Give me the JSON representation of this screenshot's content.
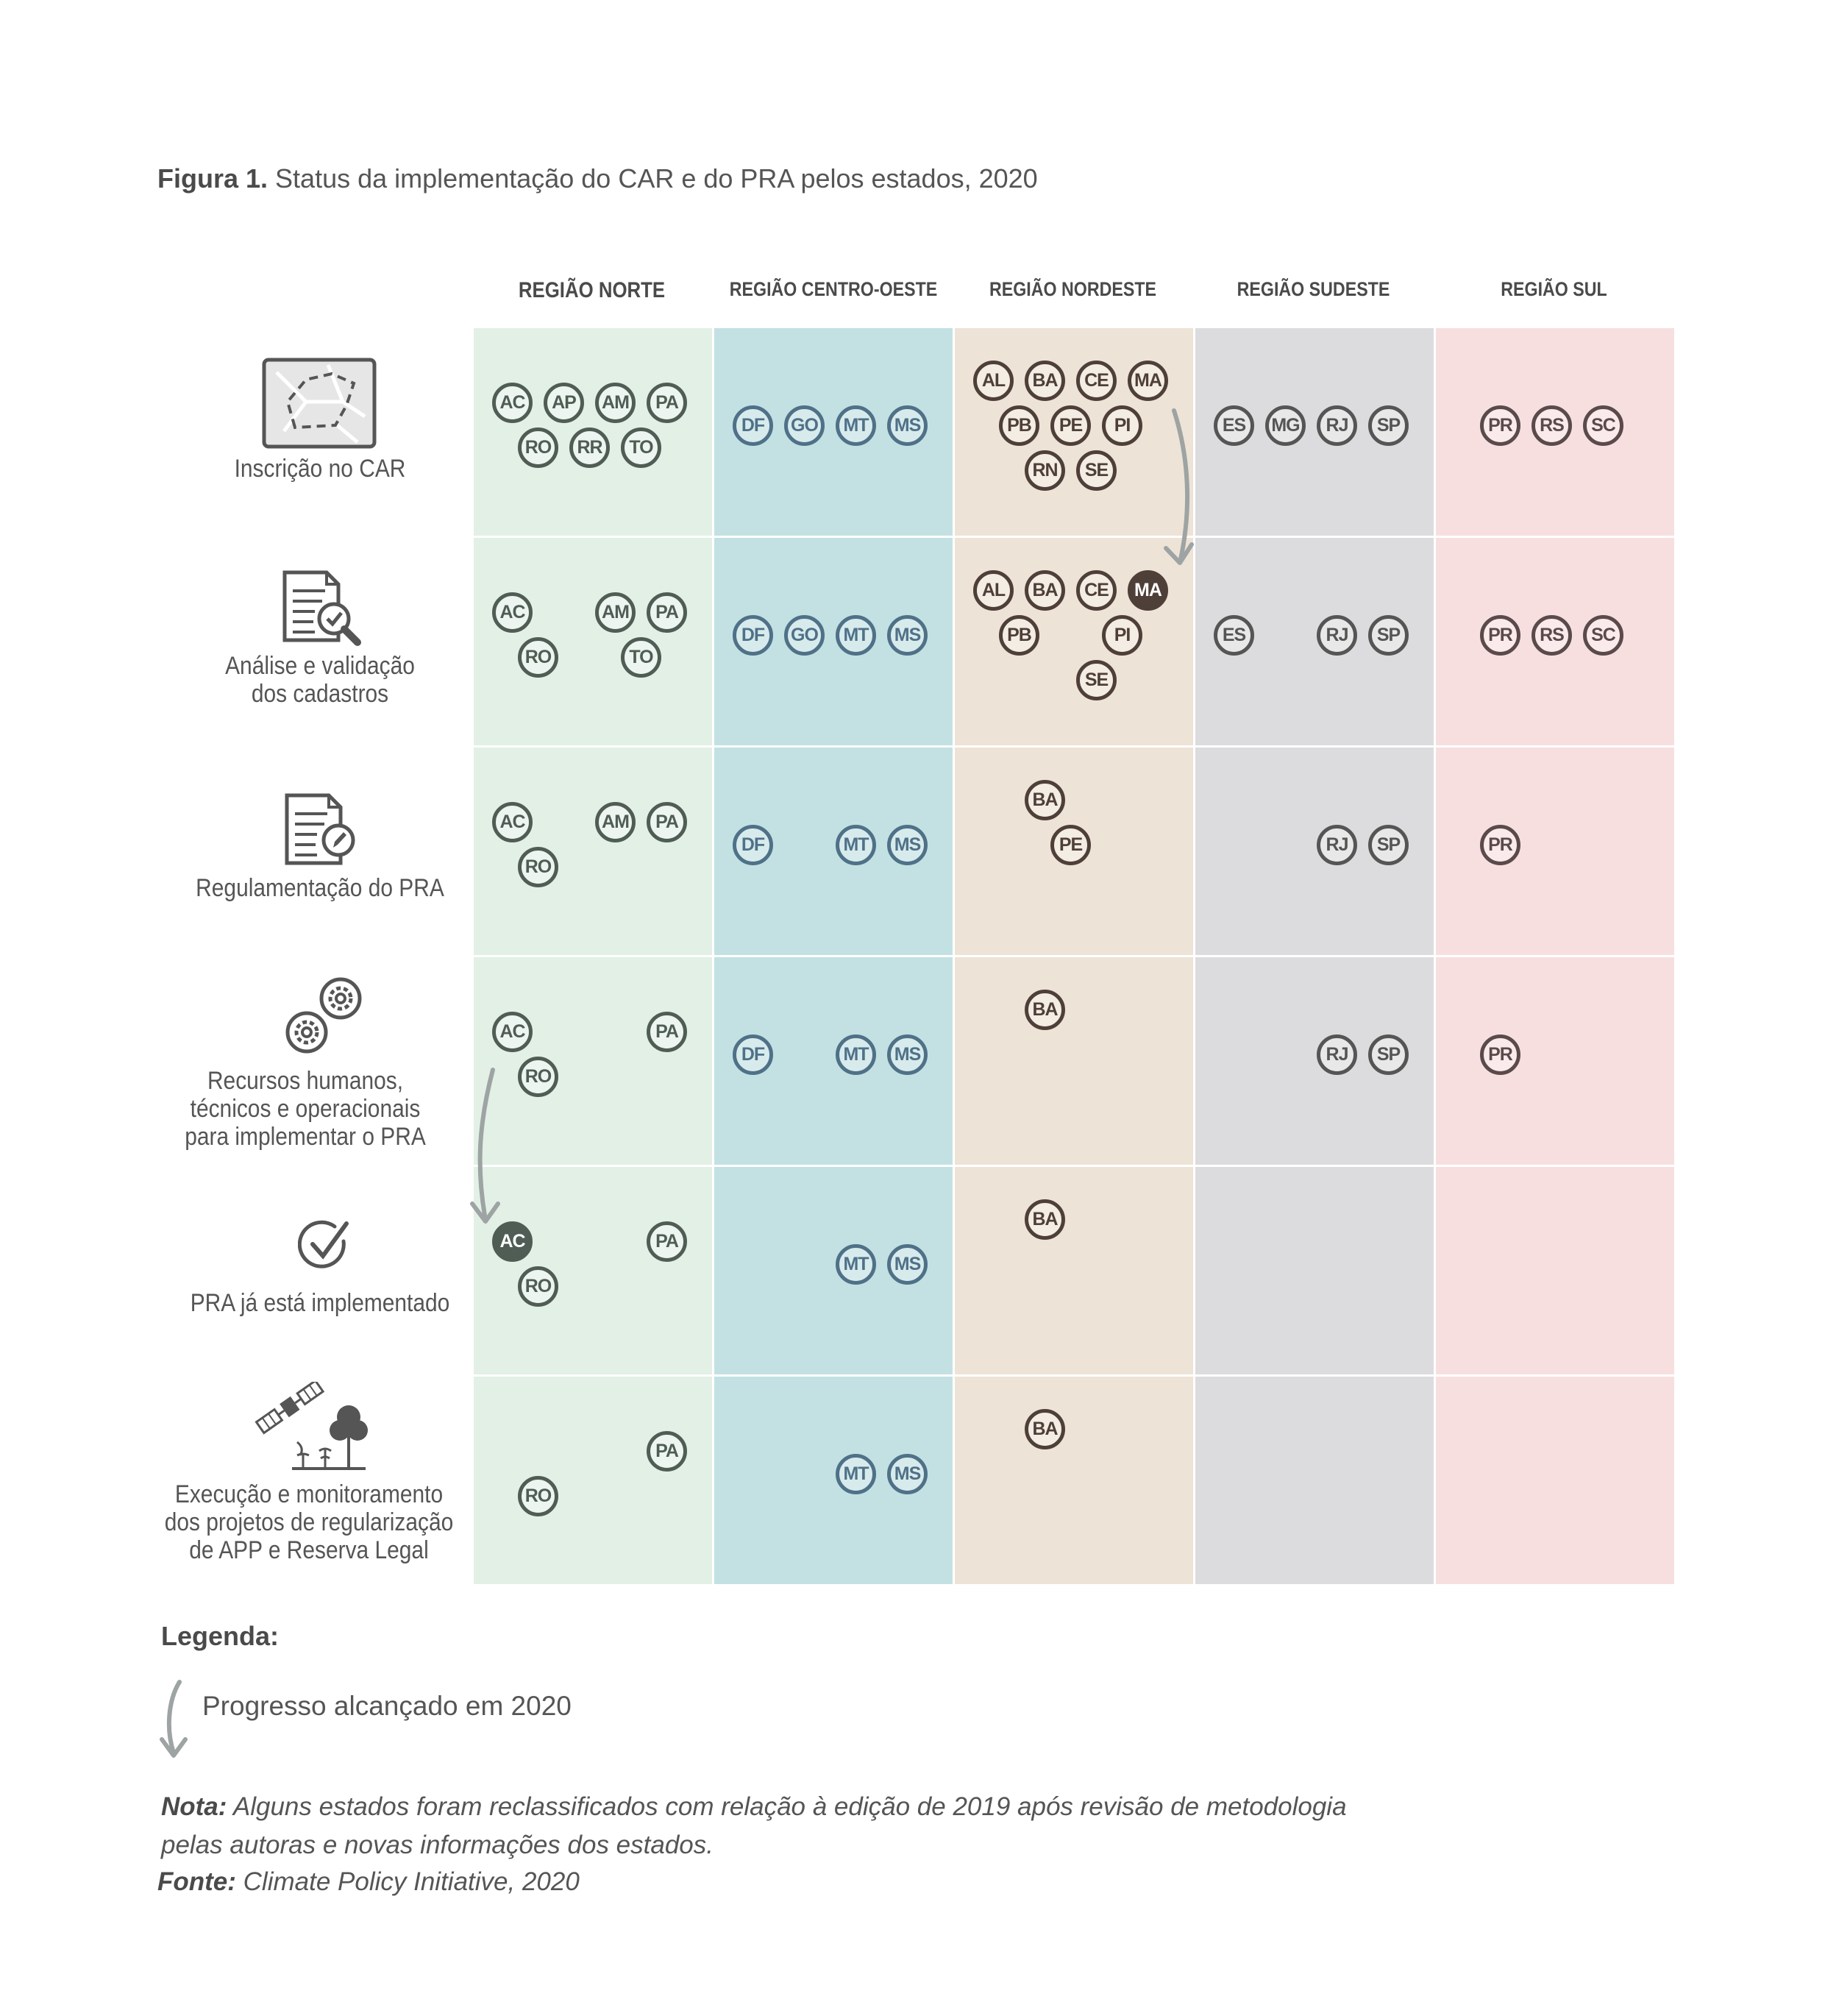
{
  "figure": {
    "title_bold": "Figura 1.",
    "title_text": "Status da implementação do CAR e do PRA pelos estados, 2020"
  },
  "regions": [
    {
      "label": "REGIÃO NORTE",
      "bg": "#e2f0e6",
      "border": "#4f5d55",
      "text": "#4f5d55",
      "fill_text": "#ffffff"
    },
    {
      "label": "REGIÃO CENTRO-OESTE",
      "bg": "#c3e1e2",
      "border": "#4f7188",
      "text": "#4f7188",
      "fill_text": "#ffffff"
    },
    {
      "label": "REGIÃO NORDESTE",
      "bg": "#ede3d6",
      "border": "#4f3f39",
      "text": "#4f3f39",
      "fill_text": "#ffffff"
    },
    {
      "label": "REGIÃO SUDESTE",
      "bg": "#dcdcde",
      "border": "#555555",
      "text": "#555555",
      "fill_text": "#ffffff"
    },
    {
      "label": "REGIÃO SUL",
      "bg": "#f7dfe0",
      "border": "#5a4a4a",
      "text": "#5a4a4a",
      "fill_text": "#ffffff"
    }
  ],
  "stages": [
    {
      "label": "Inscrição no CAR",
      "icon": "map-icon"
    },
    {
      "label": "Análise e validação\ndos cadastros",
      "icon": "document-check-icon"
    },
    {
      "label": "Regulamentação do PRA",
      "icon": "document-edit-icon"
    },
    {
      "label": "Recursos humanos,\ntécnicos e operacionais\npara implementar o PRA",
      "icon": "gears-icon"
    },
    {
      "label": "PRA já está implementado",
      "icon": "checkmark-icon"
    },
    {
      "label": "Execução e monitoramento\ndos projetos de regularização\nde APP e Reserva Legal",
      "icon": "satellite-trees-icon"
    }
  ],
  "grid": [
    [
      [
        {
          "code": "AC",
          "slot": [
            0,
            1
          ]
        },
        {
          "code": "AP",
          "slot": [
            1,
            1
          ]
        },
        {
          "code": "AM",
          "slot": [
            2,
            1
          ]
        },
        {
          "code": "PA",
          "slot": [
            3,
            1
          ]
        },
        {
          "code": "RO",
          "slot": [
            0.5,
            2
          ]
        },
        {
          "code": "RR",
          "slot": [
            1.5,
            2
          ]
        },
        {
          "code": "TO",
          "slot": [
            2.5,
            2
          ]
        }
      ],
      [
        {
          "code": "DF",
          "slot": [
            0,
            1.5
          ]
        },
        {
          "code": "GO",
          "slot": [
            1,
            1.5
          ]
        },
        {
          "code": "MT",
          "slot": [
            2,
            1.5
          ]
        },
        {
          "code": "MS",
          "slot": [
            3,
            1.5
          ]
        }
      ],
      [
        {
          "code": "AL",
          "slot": [
            0,
            0.5
          ]
        },
        {
          "code": "BA",
          "slot": [
            1,
            0.5
          ]
        },
        {
          "code": "CE",
          "slot": [
            2,
            0.5
          ]
        },
        {
          "code": "MA",
          "slot": [
            3,
            0.5
          ]
        },
        {
          "code": "PB",
          "slot": [
            0.5,
            1.5
          ]
        },
        {
          "code": "PE",
          "slot": [
            1.5,
            1.5
          ]
        },
        {
          "code": "PI",
          "slot": [
            2.5,
            1.5
          ]
        },
        {
          "code": "RN",
          "slot": [
            1,
            2.5
          ]
        },
        {
          "code": "SE",
          "slot": [
            2,
            2.5
          ]
        }
      ],
      [
        {
          "code": "ES",
          "slot": [
            0,
            1.5
          ]
        },
        {
          "code": "MG",
          "slot": [
            1,
            1.5
          ]
        },
        {
          "code": "RJ",
          "slot": [
            2,
            1.5
          ]
        },
        {
          "code": "SP",
          "slot": [
            3,
            1.5
          ]
        }
      ],
      [
        {
          "code": "PR",
          "slot": [
            0.5,
            1.5
          ]
        },
        {
          "code": "RS",
          "slot": [
            1.5,
            1.5
          ]
        },
        {
          "code": "SC",
          "slot": [
            2.5,
            1.5
          ]
        }
      ]
    ],
    [
      [
        {
          "code": "AC",
          "slot": [
            0,
            1
          ]
        },
        {
          "code": "AM",
          "slot": [
            2,
            1
          ]
        },
        {
          "code": "PA",
          "slot": [
            3,
            1
          ]
        },
        {
          "code": "RO",
          "slot": [
            0.5,
            2
          ]
        },
        {
          "code": "TO",
          "slot": [
            2.5,
            2
          ]
        }
      ],
      [
        {
          "code": "DF",
          "slot": [
            0,
            1.5
          ]
        },
        {
          "code": "GO",
          "slot": [
            1,
            1.5
          ]
        },
        {
          "code": "MT",
          "slot": [
            2,
            1.5
          ]
        },
        {
          "code": "MS",
          "slot": [
            3,
            1.5
          ]
        }
      ],
      [
        {
          "code": "AL",
          "slot": [
            0,
            0.5
          ]
        },
        {
          "code": "BA",
          "slot": [
            1,
            0.5
          ]
        },
        {
          "code": "CE",
          "slot": [
            2,
            0.5
          ]
        },
        {
          "code": "MA",
          "slot": [
            3,
            0.5
          ],
          "new": true
        },
        {
          "code": "PB",
          "slot": [
            0.5,
            1.5
          ]
        },
        {
          "code": "PI",
          "slot": [
            2.5,
            1.5
          ]
        },
        {
          "code": "SE",
          "slot": [
            2,
            2.5
          ]
        }
      ],
      [
        {
          "code": "ES",
          "slot": [
            0,
            1.5
          ]
        },
        {
          "code": "RJ",
          "slot": [
            2,
            1.5
          ]
        },
        {
          "code": "SP",
          "slot": [
            3,
            1.5
          ]
        }
      ],
      [
        {
          "code": "PR",
          "slot": [
            0.5,
            1.5
          ]
        },
        {
          "code": "RS",
          "slot": [
            1.5,
            1.5
          ]
        },
        {
          "code": "SC",
          "slot": [
            2.5,
            1.5
          ]
        }
      ]
    ],
    [
      [
        {
          "code": "AC",
          "slot": [
            0,
            1
          ]
        },
        {
          "code": "AM",
          "slot": [
            2,
            1
          ]
        },
        {
          "code": "PA",
          "slot": [
            3,
            1
          ]
        },
        {
          "code": "RO",
          "slot": [
            0.5,
            2
          ]
        }
      ],
      [
        {
          "code": "DF",
          "slot": [
            0,
            1.5
          ]
        },
        {
          "code": "MT",
          "slot": [
            2,
            1.5
          ]
        },
        {
          "code": "MS",
          "slot": [
            3,
            1.5
          ]
        }
      ],
      [
        {
          "code": "BA",
          "slot": [
            1,
            0.5
          ]
        },
        {
          "code": "PE",
          "slot": [
            1.5,
            1.5
          ]
        }
      ],
      [
        {
          "code": "RJ",
          "slot": [
            2,
            1.5
          ]
        },
        {
          "code": "SP",
          "slot": [
            3,
            1.5
          ]
        }
      ],
      [
        {
          "code": "PR",
          "slot": [
            0.5,
            1.5
          ]
        }
      ]
    ],
    [
      [
        {
          "code": "AC",
          "slot": [
            0,
            1
          ]
        },
        {
          "code": "PA",
          "slot": [
            3,
            1
          ]
        },
        {
          "code": "RO",
          "slot": [
            0.5,
            2
          ]
        }
      ],
      [
        {
          "code": "DF",
          "slot": [
            0,
            1.5
          ]
        },
        {
          "code": "MT",
          "slot": [
            2,
            1.5
          ]
        },
        {
          "code": "MS",
          "slot": [
            3,
            1.5
          ]
        }
      ],
      [
        {
          "code": "BA",
          "slot": [
            1,
            0.5
          ]
        }
      ],
      [
        {
          "code": "RJ",
          "slot": [
            2,
            1.5
          ]
        },
        {
          "code": "SP",
          "slot": [
            3,
            1.5
          ]
        }
      ],
      [
        {
          "code": "PR",
          "slot": [
            0.5,
            1.5
          ]
        }
      ]
    ],
    [
      [
        {
          "code": "AC",
          "slot": [
            0,
            1
          ],
          "new": true
        },
        {
          "code": "PA",
          "slot": [
            3,
            1
          ]
        },
        {
          "code": "RO",
          "slot": [
            0.5,
            2
          ]
        }
      ],
      [
        {
          "code": "MT",
          "slot": [
            2,
            1.5
          ]
        },
        {
          "code": "MS",
          "slot": [
            3,
            1.5
          ]
        }
      ],
      [
        {
          "code": "BA",
          "slot": [
            1,
            0.5
          ]
        }
      ],
      [],
      []
    ],
    [
      [
        {
          "code": "PA",
          "slot": [
            3,
            1
          ]
        },
        {
          "code": "RO",
          "slot": [
            0.5,
            2
          ]
        }
      ],
      [
        {
          "code": "MT",
          "slot": [
            2,
            1.5
          ]
        },
        {
          "code": "MS",
          "slot": [
            3,
            1.5
          ]
        }
      ],
      [
        {
          "code": "BA",
          "slot": [
            1,
            0.5
          ]
        }
      ],
      [],
      []
    ]
  ],
  "legend": {
    "title": "Legenda:",
    "arrow_icon": "curved-arrow-icon",
    "text": "Progresso alcançado em 2020"
  },
  "note": {
    "label": "Nota:",
    "text": "Alguns estados foram reclassificados com relação à edição de 2019 após revisão de metodologia pelas autoras e novas informações dos estados."
  },
  "source": {
    "label": "Fonte:",
    "text": "Climate Policy Initiative, 2020"
  }
}
